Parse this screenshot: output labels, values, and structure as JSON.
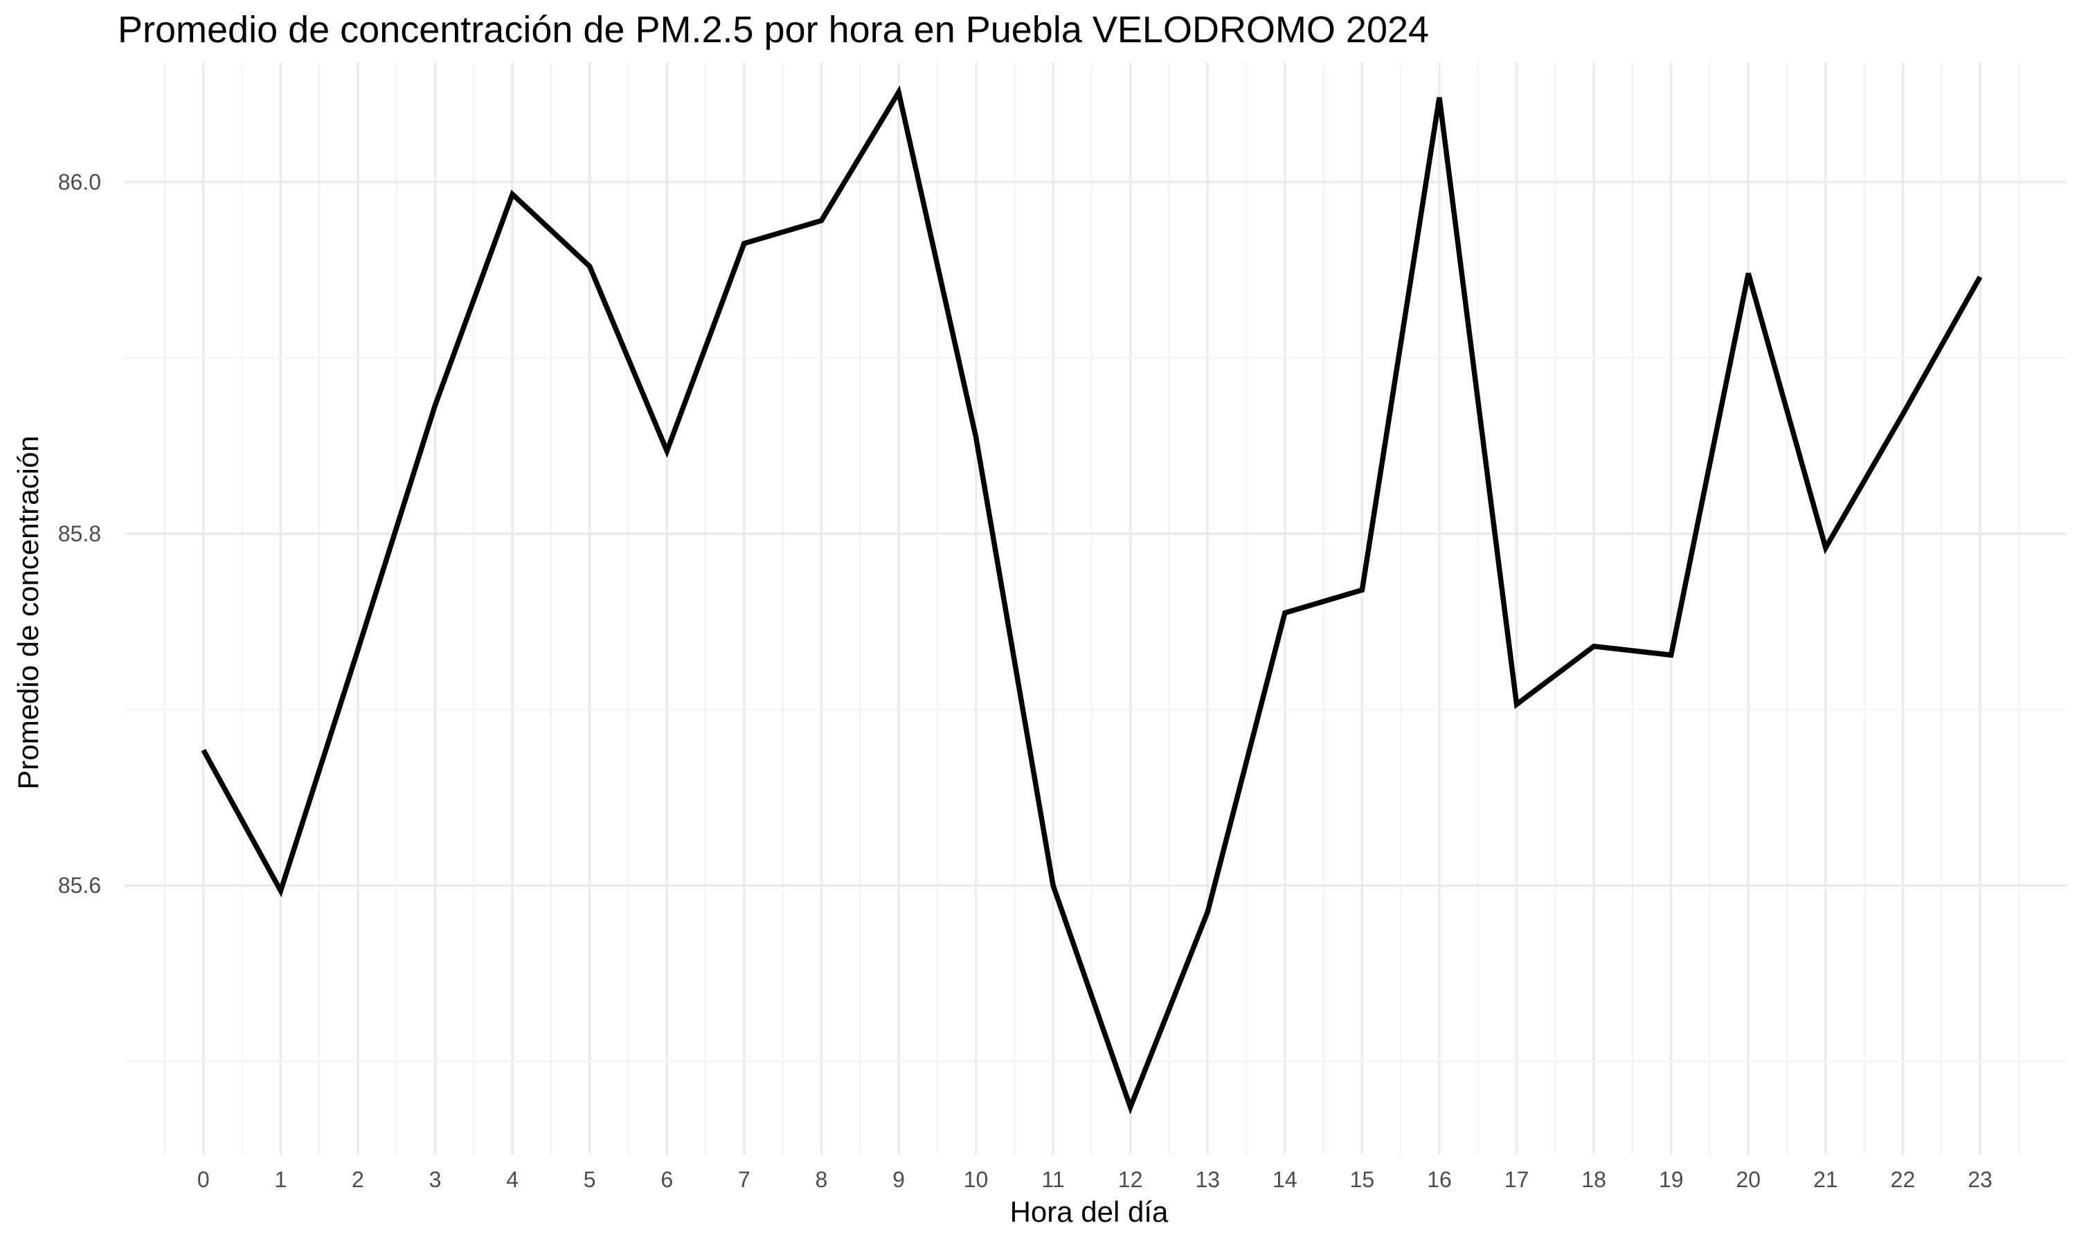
{
  "chart_data": {
    "type": "line",
    "title": "Promedio de concentración de PM.2.5 por hora en Puebla VELODROMO 2024",
    "xlabel": "Hora del día",
    "ylabel": "Promedio de concentración",
    "x": [
      0,
      1,
      2,
      3,
      4,
      5,
      6,
      7,
      8,
      9,
      10,
      11,
      12,
      13,
      14,
      15,
      16,
      17,
      18,
      19,
      20,
      21,
      22,
      23
    ],
    "x_tick_labels": [
      "0",
      "1",
      "2",
      "3",
      "4",
      "5",
      "6",
      "7",
      "8",
      "9",
      "10",
      "11",
      "12",
      "13",
      "14",
      "15",
      "16",
      "17",
      "18",
      "19",
      "20",
      "21",
      "22",
      "23"
    ],
    "series": [
      {
        "values": [
          85.677,
          85.597,
          85.734,
          85.873,
          85.993,
          85.952,
          85.847,
          85.965,
          85.978,
          86.051,
          85.855,
          85.6,
          85.474,
          85.585,
          85.755,
          85.768,
          86.048,
          85.703,
          85.736,
          85.731,
          85.948,
          85.792,
          85.868,
          85.946
        ],
        "color": "#000000"
      }
    ],
    "xlim": [
      -1.02,
      24.12
    ],
    "ylim": [
      85.447,
      86.068
    ],
    "y_ticks": [
      85.6,
      85.8,
      86.0
    ],
    "y_tick_labels": [
      "85.6",
      "85.8",
      "86.0"
    ],
    "y_minor_ticks": [
      85.5,
      85.7,
      85.9
    ],
    "grid": true,
    "legend": "none"
  }
}
